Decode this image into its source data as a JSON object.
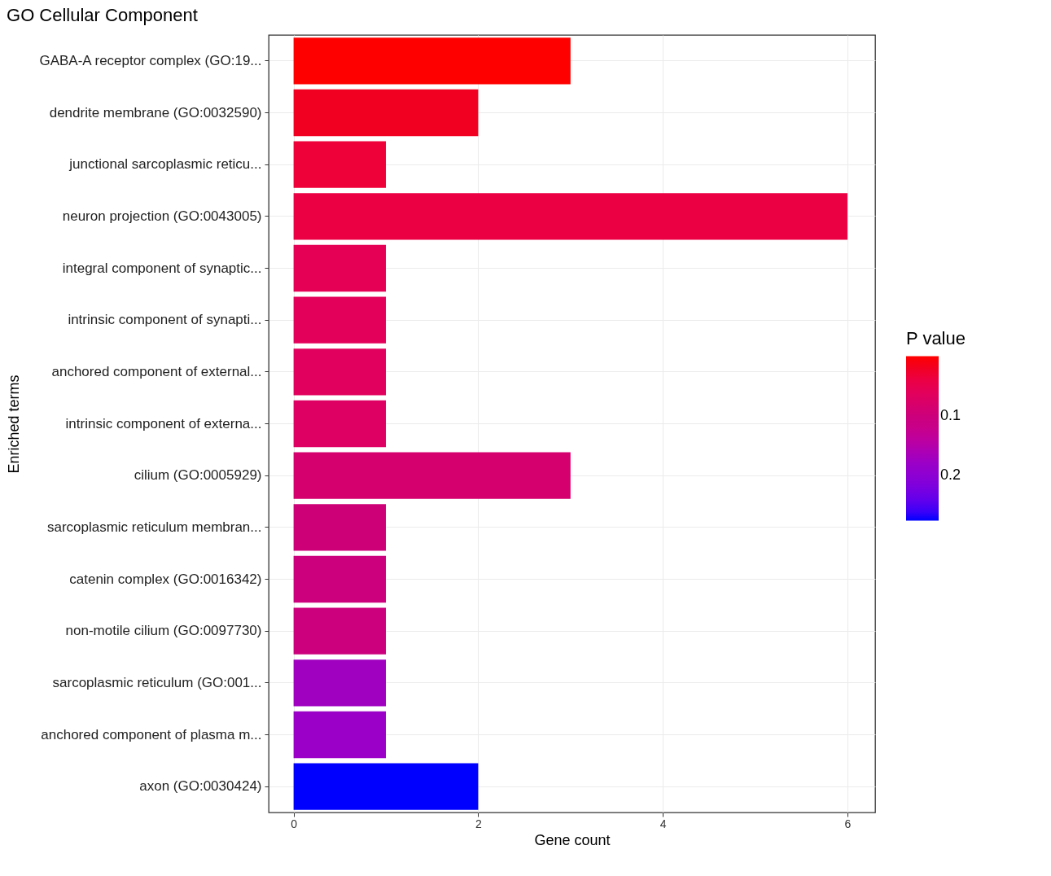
{
  "chart_data": {
    "type": "bar",
    "orientation": "horizontal",
    "title": "GO Cellular Component",
    "xlabel": "Gene count",
    "ylabel": "Enriched terms",
    "clabel": "P value",
    "categories": [
      "GABA-A receptor complex (GO:19...",
      "dendrite membrane (GO:0032590)",
      "junctional sarcoplasmic reticu...",
      "neuron projection (GO:0043005)",
      "integral component of synaptic...",
      "intrinsic component of synapti...",
      "anchored component of external...",
      "intrinsic component of externa...",
      "cilium (GO:0005929)",
      "sarcoplasmic reticulum membran...",
      "catenin complex (GO:0016342)",
      "non-motile cilium (GO:0097730)",
      "sarcoplasmic reticulum (GO:001...",
      "anchored component of plasma m...",
      "axon (GO:0030424)"
    ],
    "values": [
      3,
      2,
      1,
      6,
      1,
      1,
      1,
      1,
      3,
      1,
      1,
      1,
      1,
      1,
      2
    ],
    "cvalues": [
      0.002,
      0.02,
      0.03,
      0.04,
      0.055,
      0.06,
      0.065,
      0.07,
      0.085,
      0.095,
      0.1,
      0.105,
      0.17,
      0.18,
      0.27
    ],
    "colors": [
      "#ff0000",
      "#f20022",
      "#ee0038",
      "#ec0044",
      "#e50055",
      "#e3005a",
      "#e1005d",
      "#de0062",
      "#d5006e",
      "#ce0078",
      "#cc007c",
      "#cc007c",
      "#a000c0",
      "#9a00c8",
      "#0000ff"
    ],
    "clim": [
      0,
      0.275
    ],
    "cticks": [
      0.1,
      0.2
    ],
    "xlim": [
      -0.27,
      6.3
    ],
    "xticks": [
      0,
      2,
      4,
      6
    ],
    "grid": true
  }
}
